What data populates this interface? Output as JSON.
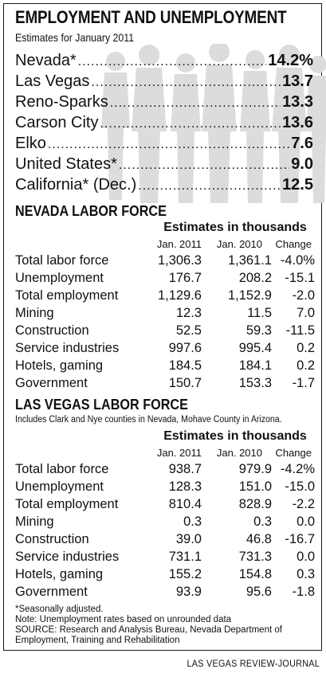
{
  "header": {
    "title": "EMPLOYMENT AND UNEMPLOYMENT",
    "subtitle": "Estimates for January 2011"
  },
  "rates": [
    {
      "name": "Nevada*",
      "value": "14.2%"
    },
    {
      "name": "Las Vegas",
      "value": "13.7"
    },
    {
      "name": "Reno-Sparks",
      "value": "13.3"
    },
    {
      "name": "Carson City",
      "value": "13.6"
    },
    {
      "name": "Elko",
      "value": "7.6"
    },
    {
      "name": "United States*",
      "value": "9.0"
    },
    {
      "name": "California* (Dec.)",
      "value": "12.5"
    }
  ],
  "nevada": {
    "title": "NEVADA LABOR FORCE",
    "estimates_label": "Estimates in thousands",
    "columns": [
      "Jan. 2011",
      "Jan. 2010",
      "Change"
    ],
    "rows": [
      {
        "label": "Total labor force",
        "v2011": "1,306.3",
        "v2010": "1,361.1",
        "change": "-4.0%"
      },
      {
        "label": "Unemployment",
        "v2011": "176.7",
        "v2010": "208.2",
        "change": "-15.1"
      },
      {
        "label": "Total employment",
        "v2011": "1,129.6",
        "v2010": "1,152.9",
        "change": "-2.0"
      },
      {
        "label": "Mining",
        "v2011": "12.3",
        "v2010": "11.5",
        "change": "7.0"
      },
      {
        "label": "Construction",
        "v2011": "52.5",
        "v2010": "59.3",
        "change": "-11.5"
      },
      {
        "label": "Service industries",
        "v2011": "997.6",
        "v2010": "995.4",
        "change": "0.2"
      },
      {
        "label": "Hotels, gaming",
        "v2011": "184.5",
        "v2010": "184.1",
        "change": "0.2"
      },
      {
        "label": "Government",
        "v2011": "150.7",
        "v2010": "153.3",
        "change": "-1.7"
      }
    ]
  },
  "lasvegas": {
    "title": "LAS VEGAS LABOR FORCE",
    "note": "Includes Clark and Nye counties in Nevada, Mohave County in Arizona.",
    "estimates_label": "Estimates in thousands",
    "columns": [
      "Jan. 2011",
      "Jan. 2010",
      "Change"
    ],
    "rows": [
      {
        "label": "Total labor force",
        "v2011": "938.7",
        "v2010": "979.9",
        "change": "-4.2%"
      },
      {
        "label": "Unemployment",
        "v2011": "128.3",
        "v2010": "151.0",
        "change": "-15.0"
      },
      {
        "label": "Total employment",
        "v2011": "810.4",
        "v2010": "828.9",
        "change": "-2.2"
      },
      {
        "label": "Mining",
        "v2011": "0.3",
        "v2010": "0.3",
        "change": "0.0"
      },
      {
        "label": "Construction",
        "v2011": "39.0",
        "v2010": "46.8",
        "change": "-16.7"
      },
      {
        "label": "Service industries",
        "v2011": "731.1",
        "v2010": "731.3",
        "change": "0.0"
      },
      {
        "label": "Hotels, gaming",
        "v2011": "155.2",
        "v2010": "154.8",
        "change": "0.3"
      },
      {
        "label": "Government",
        "v2011": "93.9",
        "v2010": "95.6",
        "change": "-1.8"
      }
    ]
  },
  "footnotes": {
    "seasonal": "*Seasonally adjusted.",
    "note": "Note: Unemployment rates based on unrounded data",
    "source_line1": "SOURCE: Research and Analysis Bureau, Nevada Department of",
    "source_line2": "Employment, Training and Rehabilitation"
  },
  "credit": "LAS VEGAS REVIEW-JOURNAL",
  "colors": {
    "silhouette": "#d9d9d9",
    "border": "#1a1a1a",
    "text": "#111111"
  },
  "decor": {
    "background_art": "crowd-silhouette-graphic"
  }
}
